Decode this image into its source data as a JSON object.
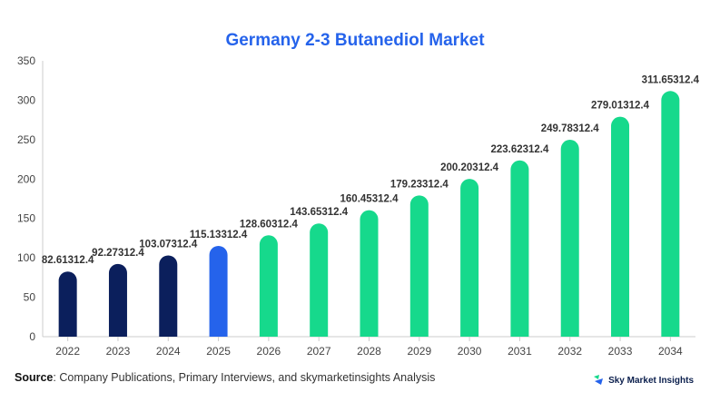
{
  "chart_data": {
    "type": "bar",
    "title": "Germany 2-3 Butanediol Market",
    "categories": [
      "2022",
      "2023",
      "2024",
      "2025",
      "2026",
      "2027",
      "2028",
      "2029",
      "2030",
      "2031",
      "2032",
      "2033",
      "2034"
    ],
    "values": [
      82.61312,
      92.27312,
      103.07312,
      115.13312,
      128.60312,
      143.65312,
      160.45312,
      179.23312,
      200.20312,
      223.62312,
      249.78312,
      279.01312,
      311.65312
    ],
    "data_labels": [
      "82.61312.4",
      "92.27312.4",
      "103.07312.4",
      "115.13312.4",
      "128.60312.4",
      "143.65312.4",
      "160.45312.4",
      "179.23312.4",
      "200.20312.4",
      "223.62312.4",
      "249.78312.4",
      "279.01312.4",
      "311.65312.4"
    ],
    "ylim": [
      0,
      350
    ],
    "yticks": [
      0,
      50,
      100,
      150,
      200,
      250,
      300,
      350
    ],
    "xlabel": "",
    "ylabel": "",
    "grid": false,
    "bar_colors": [
      "#0b1f5c",
      "#0b1f5c",
      "#0b1f5c",
      "#2563eb",
      "#16d98c",
      "#16d98c",
      "#16d98c",
      "#16d98c",
      "#16d98c",
      "#16d98c",
      "#16d98c",
      "#16d98c",
      "#16d98c"
    ]
  },
  "source": {
    "label": "Source",
    "text": ": Company Publications, Primary Interviews, and skymarketinsights Analysis"
  },
  "brand": {
    "name": "Sky Market Insights",
    "icon": "sky-market-insights-logo-icon"
  },
  "colors": {
    "title": "#2563eb",
    "historical": "#0b1f5c",
    "current": "#2563eb",
    "forecast": "#16d98c"
  }
}
